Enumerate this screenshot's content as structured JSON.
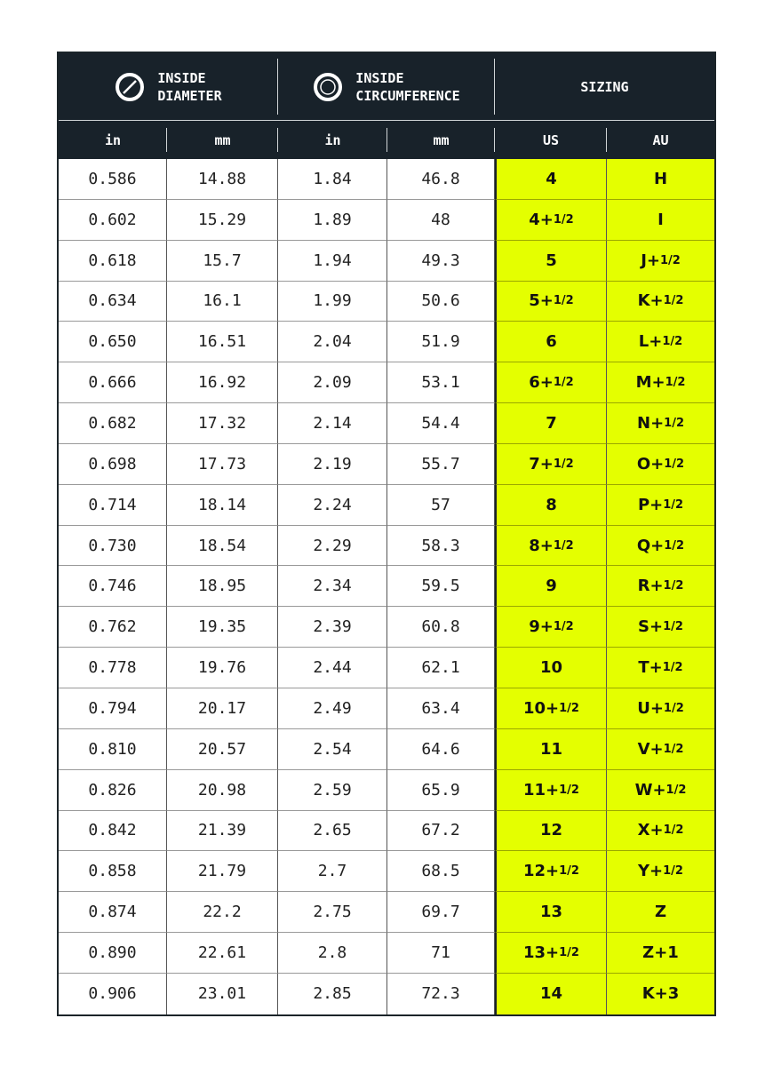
{
  "header": {
    "diameter": [
      "INSIDE",
      "DIAMETER"
    ],
    "circumference": [
      "INSIDE",
      "CIRCUMFERENCE"
    ],
    "sizing": "SIZING",
    "columns": [
      "in",
      "mm",
      "in",
      "mm",
      "US",
      "AU"
    ]
  },
  "colors": {
    "dark": "#18222a",
    "highlight": "#e4ff00"
  },
  "icons": [
    "diameter-ring-icon",
    "circumference-ring-icon"
  ],
  "rows": [
    [
      "0.586",
      "14.88",
      "1.84",
      "46.8",
      "4",
      "H"
    ],
    [
      "0.602",
      "15.29",
      "1.89",
      "48",
      "4+1/2",
      "I"
    ],
    [
      "0.618",
      "15.7",
      "1.94",
      "49.3",
      "5",
      "J+1/2"
    ],
    [
      "0.634",
      "16.1",
      "1.99",
      "50.6",
      "5+1/2",
      "K+1/2"
    ],
    [
      "0.650",
      "16.51",
      "2.04",
      "51.9",
      "6",
      "L+1/2"
    ],
    [
      "0.666",
      "16.92",
      "2.09",
      "53.1",
      "6+1/2",
      "M+1/2"
    ],
    [
      "0.682",
      "17.32",
      "2.14",
      "54.4",
      "7",
      "N+1/2"
    ],
    [
      "0.698",
      "17.73",
      "2.19",
      "55.7",
      "7+1/2",
      "O+1/2"
    ],
    [
      "0.714",
      "18.14",
      "2.24",
      "57",
      "8",
      "P+1/2"
    ],
    [
      "0.730",
      "18.54",
      "2.29",
      "58.3",
      "8+1/2",
      "Q+1/2"
    ],
    [
      "0.746",
      "18.95",
      "2.34",
      "59.5",
      "9",
      "R+1/2"
    ],
    [
      "0.762",
      "19.35",
      "2.39",
      "60.8",
      "9+1/2",
      "S+1/2"
    ],
    [
      "0.778",
      "19.76",
      "2.44",
      "62.1",
      "10",
      "T+1/2"
    ],
    [
      "0.794",
      "20.17",
      "2.49",
      "63.4",
      "10+1/2",
      "U+1/2"
    ],
    [
      "0.810",
      "20.57",
      "2.54",
      "64.6",
      "11",
      "V+1/2"
    ],
    [
      "0.826",
      "20.98",
      "2.59",
      "65.9",
      "11+1/2",
      "W+1/2"
    ],
    [
      "0.842",
      "21.39",
      "2.65",
      "67.2",
      "12",
      "X+1/2"
    ],
    [
      "0.858",
      "21.79",
      "2.7",
      "68.5",
      "12+1/2",
      "Y+1/2"
    ],
    [
      "0.874",
      "22.2",
      "2.75",
      "69.7",
      "13",
      "Z"
    ],
    [
      "0.890",
      "22.61",
      "2.8",
      "71",
      "13+1/2",
      "Z+1"
    ],
    [
      "0.906",
      "23.01",
      "2.85",
      "72.3",
      "14",
      "K+3"
    ]
  ]
}
